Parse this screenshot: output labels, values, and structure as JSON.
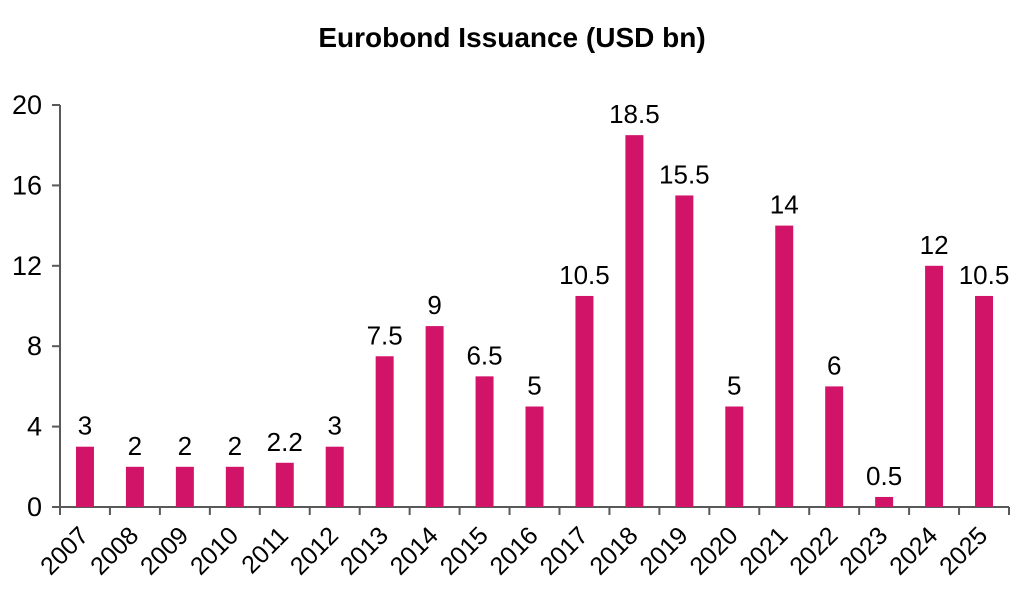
{
  "page": {
    "background_color": "#ffffff"
  },
  "chart_data": {
    "type": "bar",
    "title": "Eurobond Issuance (USD bn)",
    "categories": [
      "2007",
      "2008",
      "2009",
      "2010",
      "2011",
      "2012",
      "2013",
      "2014",
      "2015",
      "2016",
      "2017",
      "2018",
      "2019",
      "2020",
      "2021",
      "2022",
      "2023",
      "2024",
      "2025"
    ],
    "values": [
      3,
      2,
      2,
      2,
      2.2,
      3,
      7.5,
      9,
      6.5,
      5,
      10.5,
      18.5,
      15.5,
      5,
      14,
      6,
      0.5,
      12,
      10.5
    ],
    "data_labels": [
      "3",
      "2",
      "2",
      "2",
      "2.2",
      "3",
      "7.5",
      "9",
      "6.5",
      "5",
      "10.5",
      "18.5",
      "15.5",
      "5",
      "14",
      "6",
      "0.5",
      "12",
      "10.5"
    ],
    "xlabel": "",
    "ylabel": "",
    "ylim": [
      0,
      20
    ],
    "yticks": [
      0,
      4,
      8,
      12,
      16,
      20
    ],
    "grid": false,
    "legend_position": "none",
    "bar_color": "#D21469",
    "axis_color": "#595959",
    "text_color": "#000000"
  }
}
